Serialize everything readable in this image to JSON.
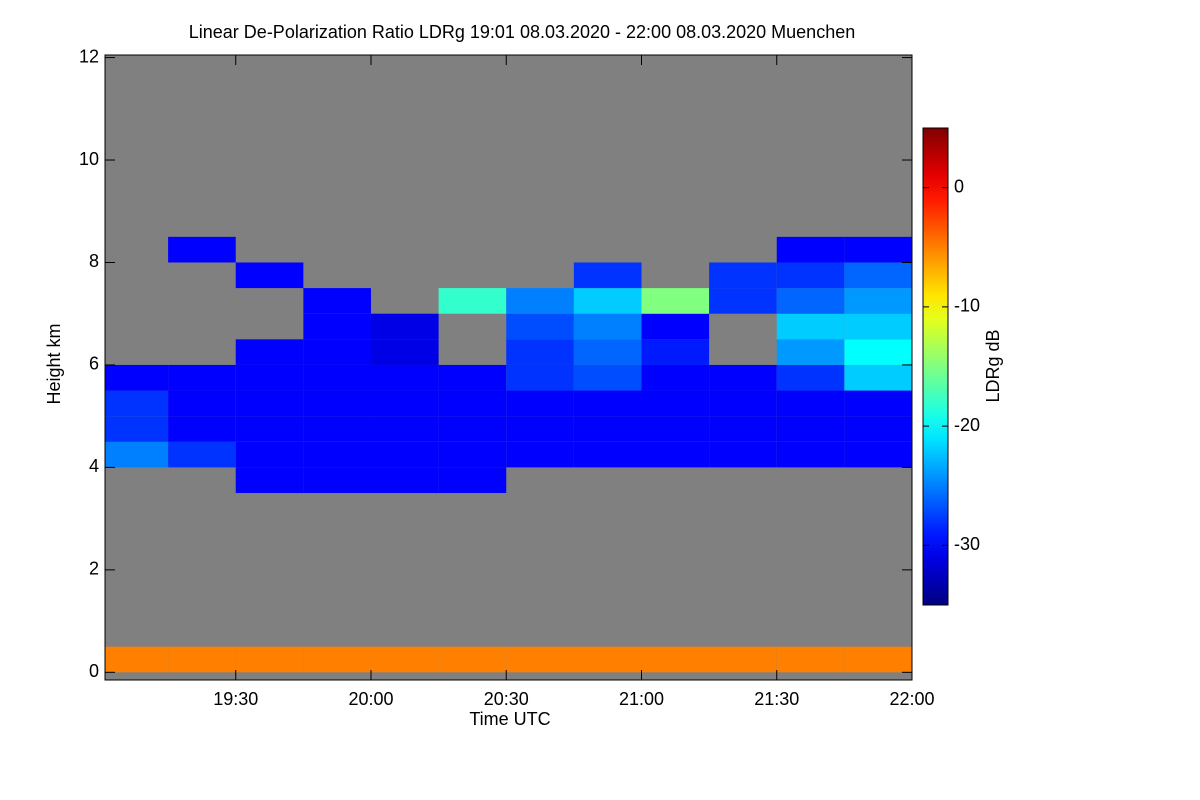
{
  "chart_data": {
    "type": "heatmap",
    "title": "Linear De-Polarization Ratio LDRg   19:01 08.03.2020 - 22:00 08.03.2020 Muenchen",
    "x_label": "Time UTC",
    "y_label": "Height km",
    "colorbar_label": "LDRg dB",
    "colormap": "jet",
    "background_color": "#808080",
    "xlim": [
      19.0167,
      22.0
    ],
    "xticks": [
      {
        "value": 19.5,
        "label": "19:30"
      },
      {
        "value": 20,
        "label": "20:00"
      },
      {
        "value": 20.5,
        "label": "20:30"
      },
      {
        "value": 21,
        "label": "21:00"
      },
      {
        "value": 21.5,
        "label": "21:30"
      },
      {
        "value": 22,
        "label": "22:00"
      }
    ],
    "ylim": [
      -0.15,
      12.05
    ],
    "yticks": [
      0,
      2,
      4,
      6,
      8,
      10,
      12
    ],
    "zlim": [
      -35,
      5
    ],
    "zticks": [
      0,
      -10,
      -20,
      -30
    ],
    "x": [
      19.125,
      19.375,
      19.625,
      19.875,
      20.125,
      20.375,
      20.625,
      20.875,
      21.125,
      21.375,
      21.625,
      21.875
    ],
    "y": [
      0.25,
      3.75,
      4.25,
      4.75,
      5.25,
      5.75,
      6.25,
      6.75,
      7.25,
      7.75,
      8.25
    ],
    "z": [
      [
        -5,
        -5,
        -5,
        -5,
        -5,
        -5,
        -5,
        -5,
        -5,
        -5,
        -5,
        -5
      ],
      [
        null,
        null,
        -30,
        -30,
        -30,
        -30,
        null,
        null,
        null,
        null,
        null,
        null
      ],
      [
        -25,
        -28,
        -30,
        -30,
        -30,
        -30,
        -30,
        -30,
        -30,
        -30,
        -30,
        -30
      ],
      [
        -28,
        -30,
        -30,
        -30,
        -30,
        -30,
        -30,
        -30,
        -30,
        -30,
        -30,
        -30
      ],
      [
        -28,
        -30,
        -30,
        -30,
        -30,
        -30,
        -30,
        -30,
        -30,
        -30,
        -30,
        -30
      ],
      [
        -30,
        -30,
        -30,
        -30,
        -30,
        -30,
        -28,
        -27,
        -30,
        -30,
        -28,
        -22
      ],
      [
        null,
        null,
        -30,
        -30,
        -31,
        null,
        -28,
        -26,
        -29,
        null,
        -24,
        -20
      ],
      [
        null,
        null,
        null,
        -30,
        -31,
        null,
        -27,
        -25,
        -30,
        null,
        -22,
        -22
      ],
      [
        null,
        null,
        null,
        -30,
        null,
        -18,
        -25,
        -22,
        -15,
        -28,
        -26,
        -24
      ],
      [
        null,
        null,
        -30,
        null,
        null,
        null,
        null,
        -28,
        null,
        -28,
        -28,
        -26
      ],
      [
        null,
        -30,
        null,
        null,
        null,
        null,
        null,
        null,
        null,
        null,
        -30,
        -30
      ]
    ]
  }
}
